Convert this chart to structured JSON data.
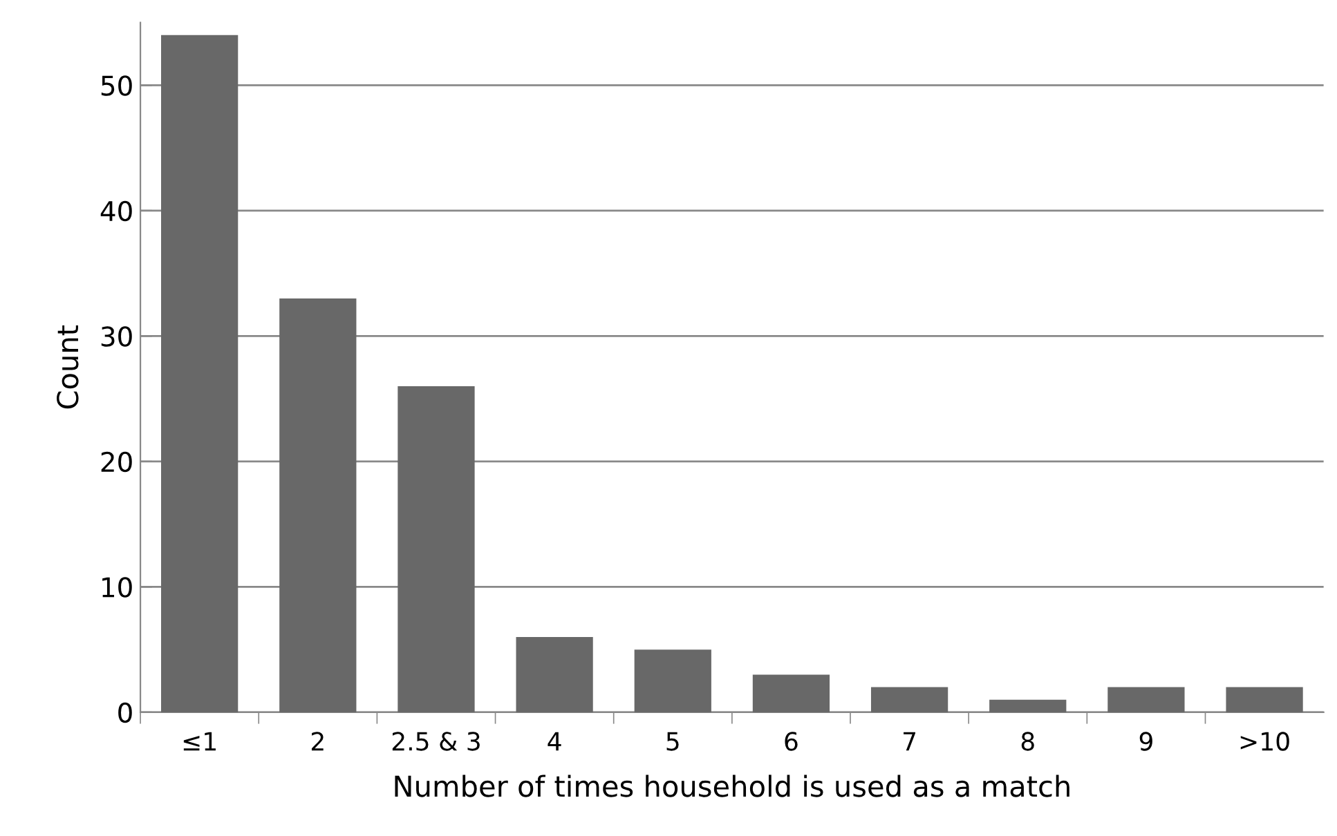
{
  "chart_data": {
    "type": "bar",
    "xlabel": "Number of times household is used as a match",
    "ylabel": "Count",
    "categories": [
      "≤1",
      "2",
      "2.5 & 3",
      "4",
      "5",
      "6",
      "7",
      "8",
      "9",
      ">10"
    ],
    "values": [
      54,
      33,
      26,
      6,
      5,
      3,
      2,
      1,
      2,
      2
    ],
    "color": "#686868",
    "ylim": [
      0,
      55
    ],
    "yticks": [
      0,
      10,
      20,
      30,
      40,
      50
    ],
    "grid": "y",
    "legend": false
  }
}
